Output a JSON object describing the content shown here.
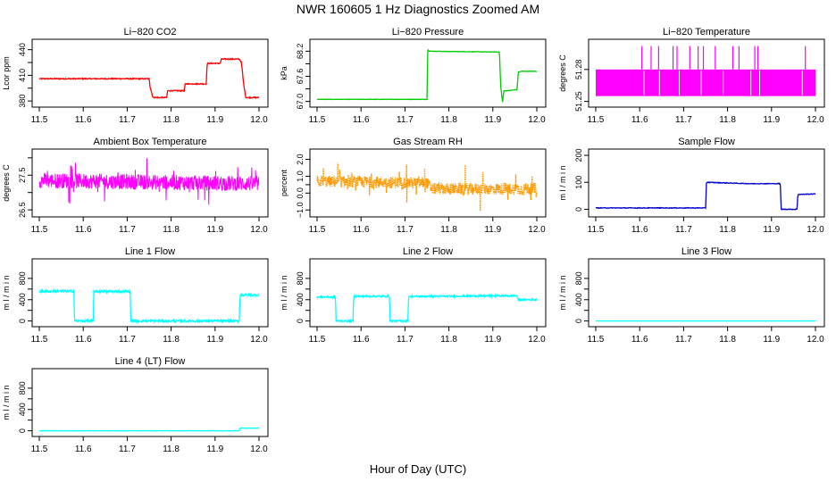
{
  "figure": {
    "title": "NWR  160605  1 Hz Diagnostics Zoomed AM",
    "xlabel": "Hour of Day (UTC)"
  },
  "chart_data": [
    {
      "type": "line",
      "title": "Li−820 CO2",
      "ylabel": "Lcor ppm",
      "color": "#ff0000",
      "xlim": [
        11.5,
        12.0
      ],
      "ylim": [
        377,
        448
      ],
      "xticks": [
        "11.5",
        "11.6",
        "11.7",
        "11.8",
        "11.9",
        "12.0"
      ],
      "yticks": [
        380,
        395,
        410,
        425,
        440
      ],
      "ytick_labels": [
        "380",
        "",
        "410",
        "",
        "440"
      ],
      "x": [
        11.5,
        11.75,
        11.752,
        11.758,
        11.76,
        11.79,
        11.792,
        11.83,
        11.832,
        11.88,
        11.882,
        11.912,
        11.914,
        11.955,
        11.96,
        11.965,
        11.97,
        12.0
      ],
      "y": [
        406,
        406,
        397,
        385,
        384,
        384,
        392,
        392,
        400,
        400,
        424,
        424,
        429,
        429,
        425,
        400,
        384,
        384
      ],
      "noise": 0.6
    },
    {
      "type": "line",
      "title": "Li−820 Pressure",
      "ylabel": "kPa",
      "color": "#00cc00",
      "xlim": [
        11.5,
        12.0
      ],
      "ylim": [
        66.95,
        68.4
      ],
      "xticks": [
        "11.5",
        "11.6",
        "11.7",
        "11.8",
        "11.9",
        "12.0"
      ],
      "yticks": [
        67.0,
        67.6,
        68.2
      ],
      "ytick_labels": [
        "67.0",
        "67.6",
        "68.2"
      ],
      "minor_yticks": [
        67.3,
        67.9
      ],
      "minor_ytick_labels": [
        "",
        ""
      ],
      "x": [
        11.5,
        11.75,
        11.752,
        11.755,
        11.915,
        11.918,
        11.922,
        11.925,
        11.955,
        11.958,
        11.965,
        12.0
      ],
      "y": [
        67.05,
        67.05,
        68.25,
        68.2,
        68.18,
        67.35,
        66.98,
        67.25,
        67.28,
        67.7,
        67.72,
        67.72
      ],
      "noise": 0.005
    },
    {
      "type": "band",
      "title": "Li−820 Temperature",
      "ylabel": "degrees C",
      "color": "#ff00ff",
      "xlim": [
        11.5,
        12.0
      ],
      "ylim": [
        51.248,
        51.305
      ],
      "xticks": [
        "11.5",
        "11.6",
        "11.7",
        "11.8",
        "11.9",
        "12.0"
      ],
      "yticks": [
        51.25,
        51.28
      ],
      "ytick_labels": [
        "51.25",
        "51.28"
      ],
      "band": [
        51.255,
        51.28
      ],
      "spikes_x": [
        11.605,
        11.626,
        11.643,
        11.676,
        11.685,
        11.714,
        11.733,
        11.745,
        11.772,
        11.812,
        11.826,
        11.862,
        11.869,
        11.977
      ],
      "spike_top": 51.302,
      "gaps_x": [
        11.61,
        11.645,
        11.69,
        11.74,
        11.79,
        11.853,
        11.873,
        11.97
      ]
    },
    {
      "type": "noise",
      "title": "Ambient Box Temperature",
      "ylabel": "degrees C",
      "color": "#ff00ff",
      "xlim": [
        11.5,
        12.0
      ],
      "ylim": [
        26.4,
        28.15
      ],
      "xticks": [
        "11.5",
        "11.6",
        "11.7",
        "11.8",
        "11.9",
        "12.0"
      ],
      "yticks": [
        26.5,
        27.0,
        27.5,
        28.0
      ],
      "ytick_labels": [
        "26.5",
        "",
        "27.5",
        ""
      ],
      "center": [
        [
          11.5,
          27.35
        ],
        [
          12.0,
          27.25
        ]
      ],
      "amplitude": 0.22,
      "spike_amp": 0.55
    },
    {
      "type": "noise",
      "title": "Gas Stream RH",
      "ylabel": "percent",
      "color": "#ff9900",
      "xlim": [
        11.5,
        12.0
      ],
      "ylim": [
        -1.2,
        2.4
      ],
      "xticks": [
        "11.5",
        "11.6",
        "11.7",
        "11.8",
        "11.9",
        "12.0"
      ],
      "yticks": [
        -1.0,
        0.0,
        0.5,
        1.0,
        2.0
      ],
      "ytick_labels": [
        "−1.0",
        "0.0",
        "",
        "1.0",
        "2.0"
      ],
      "center": [
        [
          11.5,
          0.7
        ],
        [
          11.75,
          0.6
        ],
        [
          11.76,
          0.25
        ],
        [
          12.0,
          0.25
        ]
      ],
      "amplitude": 0.35,
      "spike_amp": 1.1,
      "marker": "dotted"
    },
    {
      "type": "line",
      "title": "Sample Flow",
      "ylabel": "m l / m i n",
      "color": "#0000cc",
      "xlim": [
        11.5,
        12.0
      ],
      "ylim": [
        -15,
        210
      ],
      "xticks": [
        "11.5",
        "11.6",
        "11.7",
        "11.8",
        "11.9",
        "12.0"
      ],
      "yticks": [
        0,
        100,
        200
      ],
      "ytick_labels": [
        "0",
        "100",
        "200"
      ],
      "x": [
        11.5,
        11.75,
        11.752,
        11.85,
        11.92,
        11.922,
        11.958,
        11.96,
        12.0
      ],
      "y": [
        5,
        5,
        100,
        95,
        95,
        0,
        0,
        55,
        57
      ],
      "noise": 1.2
    },
    {
      "type": "line",
      "title": "Line 1 Flow",
      "ylabel": "m l / m i n",
      "color": "#00ffff",
      "xlim": [
        11.5,
        12.0
      ],
      "ylim": [
        -40,
        1100
      ],
      "xticks": [
        "11.5",
        "11.6",
        "11.7",
        "11.8",
        "11.9",
        "12.0"
      ],
      "yticks": [
        0,
        200,
        400,
        600,
        800
      ],
      "ytick_labels": [
        "0",
        "",
        "400",
        "",
        "800"
      ],
      "x": [
        11.5,
        11.579,
        11.58,
        11.623,
        11.624,
        11.707,
        11.708,
        11.955,
        11.957,
        12.0
      ],
      "y": [
        560,
        560,
        0,
        0,
        555,
        555,
        0,
        0,
        490,
        490
      ],
      "noise": 22
    },
    {
      "type": "line",
      "title": "Line 2 Flow",
      "ylabel": "m l / m i n",
      "color": "#00ffff",
      "xlim": [
        11.5,
        12.0
      ],
      "ylim": [
        -40,
        1100
      ],
      "xticks": [
        "11.5",
        "11.6",
        "11.7",
        "11.8",
        "11.9",
        "12.0"
      ],
      "yticks": [
        0,
        200,
        400,
        600,
        800
      ],
      "ytick_labels": [
        "0",
        "",
        "400",
        "",
        "800"
      ],
      "x": [
        11.5,
        11.542,
        11.543,
        11.582,
        11.583,
        11.665,
        11.666,
        11.707,
        11.708,
        11.955,
        11.957,
        12.0
      ],
      "y": [
        450,
        450,
        0,
        0,
        465,
        465,
        0,
        0,
        460,
        475,
        400,
        400
      ],
      "noise": 16
    },
    {
      "type": "line",
      "title": "Line 3 Flow",
      "ylabel": "m l / m i n",
      "color": "#00ffff",
      "xlim": [
        11.5,
        12.0
      ],
      "ylim": [
        -40,
        1100
      ],
      "xticks": [
        "11.5",
        "11.6",
        "11.7",
        "11.8",
        "11.9",
        "12.0"
      ],
      "yticks": [
        0,
        200,
        400,
        600,
        800
      ],
      "ytick_labels": [
        "0",
        "",
        "400",
        "",
        "800"
      ],
      "x": [
        11.5,
        12.0
      ],
      "y": [
        0,
        0
      ],
      "noise": 0
    },
    {
      "type": "line",
      "title": "Line 4 (LT) Flow",
      "ylabel": "m l / m i n",
      "color": "#00ffff",
      "xlim": [
        11.5,
        12.0
      ],
      "ylim": [
        -40,
        1100
      ],
      "xticks": [
        "11.5",
        "11.6",
        "11.7",
        "11.8",
        "11.9",
        "12.0"
      ],
      "yticks": [
        0,
        200,
        400,
        600,
        800
      ],
      "ytick_labels": [
        "0",
        "",
        "400",
        "",
        "800"
      ],
      "x": [
        11.5,
        11.955,
        11.957,
        12.0
      ],
      "y": [
        0,
        0,
        50,
        50
      ],
      "noise": 3
    }
  ]
}
